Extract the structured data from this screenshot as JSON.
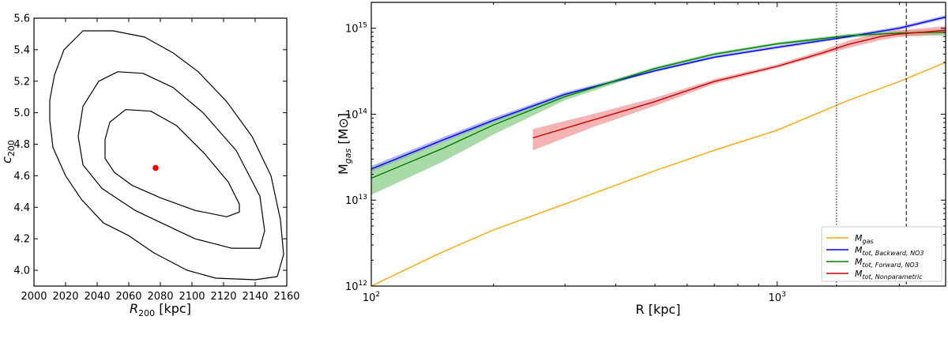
{
  "chart_data": [
    {
      "type": "contour",
      "xlabel_main": "R",
      "xlabel_sub": "200",
      "xlabel_unit": " [kpc]",
      "ylabel_main": "c",
      "ylabel_sub": "200",
      "xlim": [
        2000,
        2160
      ],
      "ylim": [
        3.9,
        5.6
      ],
      "xticks": [
        "2000",
        "2020",
        "2040",
        "2060",
        "2080",
        "2100",
        "2120",
        "2140",
        "2160"
      ],
      "yticks": [
        "4.0",
        "4.2",
        "4.4",
        "4.6",
        "4.8",
        "5.0",
        "5.2",
        "5.4",
        "5.6"
      ],
      "best_fit": {
        "x": 2077,
        "y": 4.65,
        "color": "#ff0000"
      },
      "contours": [
        {
          "level": "inner",
          "points": [
            [
              2045,
              4.83
            ],
            [
              2048,
              4.94
            ],
            [
              2058,
              5.02
            ],
            [
              2074,
              5.01
            ],
            [
              2090,
              4.92
            ],
            [
              2108,
              4.74
            ],
            [
              2123,
              4.56
            ],
            [
              2130,
              4.42
            ],
            [
              2130,
              4.37
            ],
            [
              2122,
              4.34
            ],
            [
              2102,
              4.38
            ],
            [
              2080,
              4.46
            ],
            [
              2062,
              4.54
            ],
            [
              2051,
              4.62
            ],
            [
              2045,
              4.71
            ]
          ]
        },
        {
          "level": "middle",
          "points": [
            [
              2028,
              4.85
            ],
            [
              2031,
              5.04
            ],
            [
              2041,
              5.2
            ],
            [
              2053,
              5.26
            ],
            [
              2069,
              5.25
            ],
            [
              2088,
              5.16
            ],
            [
              2107,
              5.0
            ],
            [
              2128,
              4.76
            ],
            [
              2143,
              4.47
            ],
            [
              2146,
              4.25
            ],
            [
              2143,
              4.14
            ],
            [
              2125,
              4.14
            ],
            [
              2102,
              4.2
            ],
            [
              2085,
              4.28
            ],
            [
              2064,
              4.38
            ],
            [
              2043,
              4.52
            ],
            [
              2031,
              4.67
            ]
          ]
        },
        {
          "level": "outer",
          "points": [
            [
              2010,
              5.08
            ],
            [
              2013,
              5.24
            ],
            [
              2019,
              5.4
            ],
            [
              2031,
              5.52
            ],
            [
              2050,
              5.52
            ],
            [
              2070,
              5.48
            ],
            [
              2088,
              5.38
            ],
            [
              2104,
              5.26
            ],
            [
              2122,
              5.07
            ],
            [
              2138,
              4.85
            ],
            [
              2150,
              4.6
            ],
            [
              2156,
              4.32
            ],
            [
              2158,
              4.1
            ],
            [
              2154,
              3.96
            ],
            [
              2140,
              3.94
            ],
            [
              2115,
              3.95
            ],
            [
              2097,
              4.0
            ],
            [
              2076,
              4.11
            ],
            [
              2060,
              4.22
            ],
            [
              2044,
              4.3
            ],
            [
              2030,
              4.45
            ],
            [
              2020,
              4.6
            ],
            [
              2012,
              4.78
            ],
            [
              2010,
              4.95
            ]
          ]
        }
      ]
    },
    {
      "type": "line",
      "xscale": "log",
      "yscale": "log",
      "xlabel": "R [kpc]",
      "ylabel_main": "M",
      "ylabel_sub": "gas",
      "ylabel_unit": " [M⊙]",
      "xlim": [
        100,
        2600
      ],
      "ylim": [
        1000000000000.0,
        2000000000000000.0
      ],
      "xticks": [
        {
          "value": 100,
          "mant": "10",
          "exp": "2"
        },
        {
          "value": 1000,
          "mant": "10",
          "exp": "3"
        }
      ],
      "yticks": [
        {
          "value": 1000000000000.0,
          "mant": "10",
          "exp": "12"
        },
        {
          "value": 10000000000000.0,
          "mant": "10",
          "exp": "13"
        },
        {
          "value": 100000000000000.0,
          "mant": "10",
          "exp": "14"
        },
        {
          "value": 1000000000000000.0,
          "mant": "10",
          "exp": "15"
        }
      ],
      "vlines": [
        {
          "x": 1400,
          "style": "dotted"
        },
        {
          "x": 2080,
          "style": "dashed"
        }
      ],
      "series": [
        {
          "name": "M",
          "sub": "gas",
          "color": "#ffa500",
          "x": [
            100,
            150,
            200,
            300,
            500,
            700,
            1000,
            1500,
            2000,
            2600
          ],
          "y": [
            1000000000000.0,
            2500000000000.0,
            4500000000000.0,
            9000000000000.0,
            22000000000000.0,
            38000000000000.0,
            65000000000000.0,
            145000000000000.0,
            240000000000000.0,
            400000000000000.0
          ]
        },
        {
          "name": "M",
          "sub": "tot, Backward, NO3",
          "color": "#0000ff",
          "band_color": "#8080ff",
          "x": [
            100,
            150,
            200,
            300,
            500,
            700,
            1000,
            1500,
            2000,
            2600
          ],
          "y": [
            23000000000000.0,
            50000000000000.0,
            85000000000000.0,
            170000000000000.0,
            320000000000000.0,
            460000000000000.0,
            600000000000000.0,
            800000000000000.0,
            1000000000000000.0,
            1350000000000000.0
          ],
          "lo": [
            21500000000000.0,
            47000000000000.0,
            80000000000000.0,
            162000000000000.0,
            310000000000000.0,
            445000000000000.0,
            580000000000000.0,
            770000000000000.0,
            960000000000000.0,
            1290000000000000.0
          ],
          "hi": [
            25000000000000.0,
            54000000000000.0,
            91000000000000.0,
            180000000000000.0,
            335000000000000.0,
            480000000000000.0,
            625000000000000.0,
            835000000000000.0,
            1050000000000000.0,
            1420000000000000.0
          ]
        },
        {
          "name": "M",
          "sub": "tot, Forward, NO3",
          "color": "#008000",
          "band_color": "#6fc36f",
          "x": [
            100,
            150,
            200,
            300,
            500,
            700,
            1000,
            1500,
            2000,
            2600
          ],
          "y": [
            18000000000000.0,
            40000000000000.0,
            75000000000000.0,
            160000000000000.0,
            340000000000000.0,
            500000000000000.0,
            660000000000000.0,
            820000000000000.0,
            880000000000000.0,
            900000000000000.0
          ],
          "lo": [
            11500000000000.0,
            28000000000000.0,
            58000000000000.0,
            145000000000000.0,
            325000000000000.0,
            480000000000000.0,
            635000000000000.0,
            780000000000000.0,
            820000000000000.0,
            820000000000000.0
          ],
          "hi": [
            24000000000000.0,
            48000000000000.0,
            85000000000000.0,
            170000000000000.0,
            355000000000000.0,
            520000000000000.0,
            685000000000000.0,
            860000000000000.0,
            940000000000000.0,
            970000000000000.0
          ]
        },
        {
          "name": "M",
          "sub": "tot, Nonparametric",
          "color": "#cc0000",
          "band_color": "#f08080",
          "x": [
            250,
            350,
            500,
            700,
            1000,
            1300,
            1500,
            1800,
            2000,
            2300,
            2600
          ],
          "y": [
            53000000000000.0,
            85000000000000.0,
            140000000000000.0,
            240000000000000.0,
            360000000000000.0,
            520000000000000.0,
            650000000000000.0,
            800000000000000.0,
            860000000000000.0,
            900000000000000.0,
            950000000000000.0
          ],
          "lo": [
            38000000000000.0,
            70000000000000.0,
            125000000000000.0,
            225000000000000.0,
            345000000000000.0,
            490000000000000.0,
            590000000000000.0,
            730000000000000.0,
            790000000000000.0,
            820000000000000.0,
            860000000000000.0
          ],
          "hi": [
            67000000000000.0,
            100000000000000.0,
            155000000000000.0,
            255000000000000.0,
            380000000000000.0,
            560000000000000.0,
            720000000000000.0,
            880000000000000.0,
            950000000000000.0,
            1000000000000000.0,
            1060000000000000.0
          ]
        }
      ]
    }
  ]
}
